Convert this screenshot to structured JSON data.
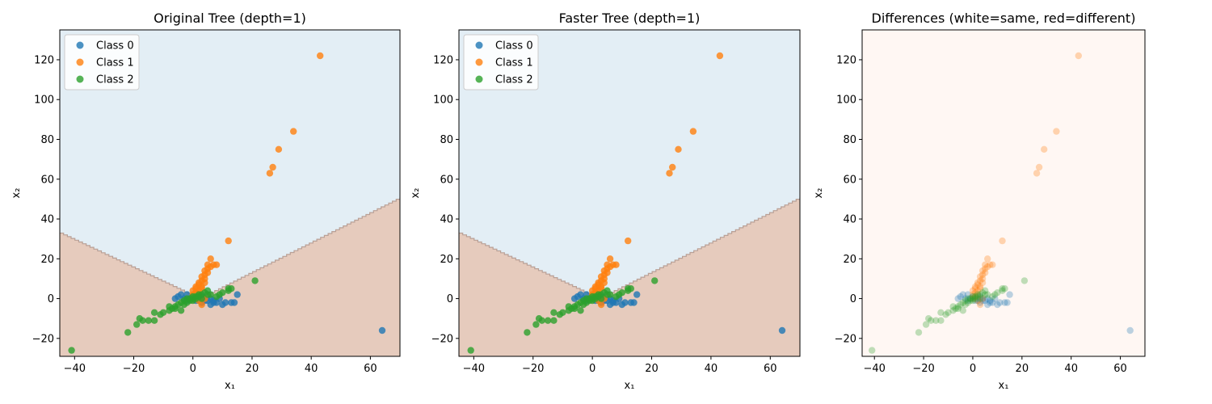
{
  "chart_data": [
    {
      "type": "scatter",
      "title": "Original Tree (depth=1)",
      "xlabel": "x₁",
      "ylabel": "x₂",
      "xlim": [
        -45,
        70
      ],
      "ylim": [
        -29,
        135
      ],
      "xticks": [
        -40,
        -20,
        0,
        20,
        40,
        60
      ],
      "yticks": [
        -20,
        0,
        20,
        40,
        60,
        80,
        100,
        120
      ],
      "background": "decision_regions",
      "legend": "top-left",
      "grid": false
    },
    {
      "type": "scatter",
      "title": "Faster Tree (depth=1)",
      "xlabel": "x₁",
      "ylabel": "x₂",
      "xlim": [
        -45,
        70
      ],
      "ylim": [
        -29,
        135
      ],
      "xticks": [
        -40,
        -20,
        0,
        20,
        40,
        60
      ],
      "yticks": [
        -20,
        0,
        20,
        40,
        60,
        80,
        100,
        120
      ],
      "background": "decision_regions",
      "legend": "top-left",
      "grid": false
    },
    {
      "type": "scatter",
      "title": "Differences (white=same, red=different)",
      "xlabel": "x₁",
      "ylabel": "x₂",
      "xlim": [
        -45,
        70
      ],
      "ylim": [
        -29,
        135
      ],
      "xticks": [
        -40,
        -20,
        0,
        20,
        40,
        60
      ],
      "yticks": [
        -20,
        0,
        20,
        40,
        60,
        80,
        100,
        120
      ],
      "background": "uniform_same",
      "legend": "none",
      "grid": false
    }
  ],
  "series": [
    {
      "name": "Class 0",
      "color": "#1f77b4",
      "points": [
        [
          -5,
          1
        ],
        [
          -4,
          2
        ],
        [
          -3,
          0
        ],
        [
          -2,
          -1
        ],
        [
          -1,
          0
        ],
        [
          0,
          1
        ],
        [
          1,
          -1
        ],
        [
          2,
          0
        ],
        [
          3,
          1
        ],
        [
          3,
          -2
        ],
        [
          4,
          0
        ],
        [
          5,
          -1
        ],
        [
          6,
          -3
        ],
        [
          7,
          -1
        ],
        [
          8,
          -2
        ],
        [
          9,
          0
        ],
        [
          10,
          -3
        ],
        [
          11,
          -2
        ],
        [
          13,
          -2
        ],
        [
          14,
          -2
        ],
        [
          15,
          2
        ],
        [
          64,
          -16
        ],
        [
          6,
          0
        ],
        [
          4,
          -1
        ],
        [
          -6,
          0
        ],
        [
          -2,
          2
        ],
        [
          2,
          -1
        ],
        [
          7,
          -2
        ]
      ]
    },
    {
      "name": "Class 1",
      "color": "#ff7f0e",
      "points": [
        [
          0,
          0
        ],
        [
          0,
          2
        ],
        [
          0,
          4
        ],
        [
          1,
          3
        ],
        [
          1,
          5
        ],
        [
          1,
          6
        ],
        [
          2,
          4
        ],
        [
          2,
          7
        ],
        [
          2,
          8
        ],
        [
          3,
          6
        ],
        [
          3,
          9
        ],
        [
          3,
          11
        ],
        [
          4,
          8
        ],
        [
          4,
          12
        ],
        [
          4,
          14
        ],
        [
          5,
          15
        ],
        [
          5,
          17
        ],
        [
          6,
          20
        ],
        [
          7,
          17
        ],
        [
          8,
          17
        ],
        [
          5,
          13
        ],
        [
          6,
          16
        ],
        [
          3,
          -3
        ],
        [
          2,
          -1
        ],
        [
          4,
          0
        ],
        [
          12,
          29
        ],
        [
          26,
          63
        ],
        [
          27,
          66
        ],
        [
          29,
          75
        ],
        [
          34,
          84
        ],
        [
          43,
          122
        ],
        [
          1,
          1
        ],
        [
          2,
          2
        ],
        [
          3,
          5
        ],
        [
          4,
          10
        ]
      ]
    },
    {
      "name": "Class 2",
      "color": "#2ca02c",
      "points": [
        [
          -41,
          -26
        ],
        [
          -22,
          -17
        ],
        [
          -19,
          -13
        ],
        [
          -18,
          -10
        ],
        [
          -17,
          -11
        ],
        [
          -15,
          -11
        ],
        [
          -13,
          -11
        ],
        [
          -13,
          -7
        ],
        [
          -11,
          -8
        ],
        [
          -10,
          -7
        ],
        [
          -8,
          -6
        ],
        [
          -7,
          -5
        ],
        [
          -6,
          -4
        ],
        [
          -5,
          -3
        ],
        [
          -4,
          -6
        ],
        [
          -4,
          -2
        ],
        [
          -3,
          -3
        ],
        [
          -3,
          -1
        ],
        [
          -2,
          -2
        ],
        [
          -2,
          0
        ],
        [
          -1,
          -1
        ],
        [
          -1,
          0
        ],
        [
          0,
          -1
        ],
        [
          0,
          0
        ],
        [
          0,
          1
        ],
        [
          1,
          0
        ],
        [
          1,
          1
        ],
        [
          2,
          1
        ],
        [
          2,
          2
        ],
        [
          3,
          0
        ],
        [
          3,
          2
        ],
        [
          4,
          3
        ],
        [
          5,
          4
        ],
        [
          5,
          2
        ],
        [
          6,
          2
        ],
        [
          8,
          1
        ],
        [
          9,
          2
        ],
        [
          10,
          3
        ],
        [
          12,
          4
        ],
        [
          12,
          5
        ],
        [
          13,
          5
        ],
        [
          21,
          9
        ],
        [
          -6,
          -5
        ],
        [
          -8,
          -4
        ]
      ]
    }
  ]
}
